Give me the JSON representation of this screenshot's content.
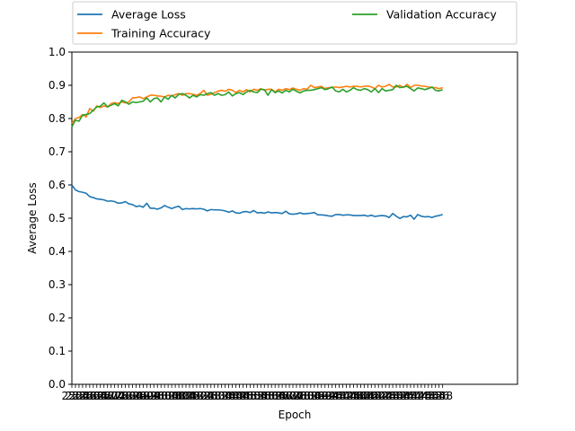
{
  "chart_data": {
    "type": "line",
    "xlabel": "Epoch",
    "ylabel": "Average Loss",
    "ylim": [
      0.0,
      1.0
    ],
    "xlim": [
      250,
      500
    ],
    "yticks": [
      0.0,
      0.1,
      0.2,
      0.3,
      0.4,
      0.5,
      0.6,
      0.7,
      0.8,
      0.9,
      1.0
    ],
    "ytick_labels": [
      "0.0",
      "0.1",
      "0.2",
      "0.3",
      "0.4",
      "0.5",
      "0.6",
      "0.7",
      "0.8",
      "0.9",
      "1.0"
    ],
    "x_start": 250,
    "x_step": 2,
    "grid": false,
    "legend_placement": "top, above plot",
    "series": [
      {
        "name": "Average Loss",
        "color": "#1f77b4",
        "values": [
          0.6,
          0.585,
          0.58,
          0.578,
          0.575,
          0.565,
          0.562,
          0.558,
          0.557,
          0.555,
          0.551,
          0.552,
          0.55,
          0.545,
          0.546,
          0.55,
          0.543,
          0.541,
          0.535,
          0.537,
          0.533,
          0.545,
          0.53,
          0.53,
          0.527,
          0.531,
          0.538,
          0.533,
          0.529,
          0.533,
          0.536,
          0.526,
          0.529,
          0.528,
          0.529,
          0.528,
          0.529,
          0.527,
          0.522,
          0.526,
          0.525,
          0.525,
          0.524,
          0.522,
          0.518,
          0.522,
          0.516,
          0.515,
          0.519,
          0.52,
          0.517,
          0.523,
          0.516,
          0.517,
          0.515,
          0.519,
          0.516,
          0.517,
          0.516,
          0.514,
          0.521,
          0.513,
          0.512,
          0.513,
          0.516,
          0.513,
          0.514,
          0.515,
          0.517,
          0.51,
          0.51,
          0.509,
          0.507,
          0.506,
          0.511,
          0.511,
          0.509,
          0.51,
          0.51,
          0.508,
          0.508,
          0.508,
          0.509,
          0.506,
          0.509,
          0.505,
          0.507,
          0.508,
          0.507,
          0.502,
          0.514,
          0.506,
          0.499,
          0.505,
          0.504,
          0.509,
          0.497,
          0.511,
          0.506,
          0.504,
          0.505,
          0.502,
          0.506,
          0.508,
          0.511
        ]
      },
      {
        "name": "Training Accuracy",
        "color": "#ff7f0e",
        "values": [
          0.785,
          0.8,
          0.803,
          0.812,
          0.805,
          0.83,
          0.822,
          0.838,
          0.833,
          0.838,
          0.835,
          0.845,
          0.848,
          0.845,
          0.85,
          0.847,
          0.85,
          0.862,
          0.863,
          0.865,
          0.86,
          0.865,
          0.87,
          0.87,
          0.868,
          0.867,
          0.865,
          0.87,
          0.868,
          0.872,
          0.875,
          0.87,
          0.875,
          0.875,
          0.873,
          0.87,
          0.875,
          0.885,
          0.87,
          0.873,
          0.878,
          0.882,
          0.885,
          0.882,
          0.888,
          0.885,
          0.878,
          0.885,
          0.88,
          0.887,
          0.88,
          0.888,
          0.885,
          0.89,
          0.885,
          0.888,
          0.888,
          0.88,
          0.888,
          0.885,
          0.89,
          0.887,
          0.892,
          0.888,
          0.885,
          0.89,
          0.888,
          0.9,
          0.893,
          0.895,
          0.897,
          0.89,
          0.893,
          0.893,
          0.895,
          0.893,
          0.895,
          0.897,
          0.895,
          0.897,
          0.897,
          0.895,
          0.897,
          0.898,
          0.895,
          0.89,
          0.9,
          0.895,
          0.897,
          0.903,
          0.895,
          0.895,
          0.9,
          0.893,
          0.903,
          0.893,
          0.9,
          0.9,
          0.898,
          0.897,
          0.895,
          0.893,
          0.893,
          0.89,
          0.893
        ]
      },
      {
        "name": "Validation Accuracy",
        "color": "#2ca02c",
        "values": [
          0.775,
          0.795,
          0.792,
          0.81,
          0.812,
          0.815,
          0.825,
          0.835,
          0.837,
          0.847,
          0.835,
          0.84,
          0.845,
          0.838,
          0.855,
          0.85,
          0.843,
          0.85,
          0.848,
          0.85,
          0.852,
          0.862,
          0.85,
          0.86,
          0.862,
          0.85,
          0.865,
          0.858,
          0.87,
          0.862,
          0.873,
          0.875,
          0.87,
          0.862,
          0.87,
          0.865,
          0.872,
          0.87,
          0.875,
          0.878,
          0.87,
          0.875,
          0.87,
          0.872,
          0.88,
          0.868,
          0.875,
          0.878,
          0.872,
          0.88,
          0.885,
          0.88,
          0.878,
          0.888,
          0.887,
          0.87,
          0.887,
          0.878,
          0.883,
          0.877,
          0.885,
          0.88,
          0.888,
          0.882,
          0.877,
          0.883,
          0.885,
          0.885,
          0.887,
          0.89,
          0.893,
          0.887,
          0.89,
          0.895,
          0.883,
          0.88,
          0.888,
          0.88,
          0.885,
          0.893,
          0.887,
          0.885,
          0.89,
          0.887,
          0.88,
          0.89,
          0.878,
          0.89,
          0.883,
          0.885,
          0.887,
          0.9,
          0.893,
          0.895,
          0.897,
          0.89,
          0.883,
          0.892,
          0.89,
          0.887,
          0.89,
          0.895,
          0.885,
          0.883,
          0.887
        ]
      }
    ]
  }
}
